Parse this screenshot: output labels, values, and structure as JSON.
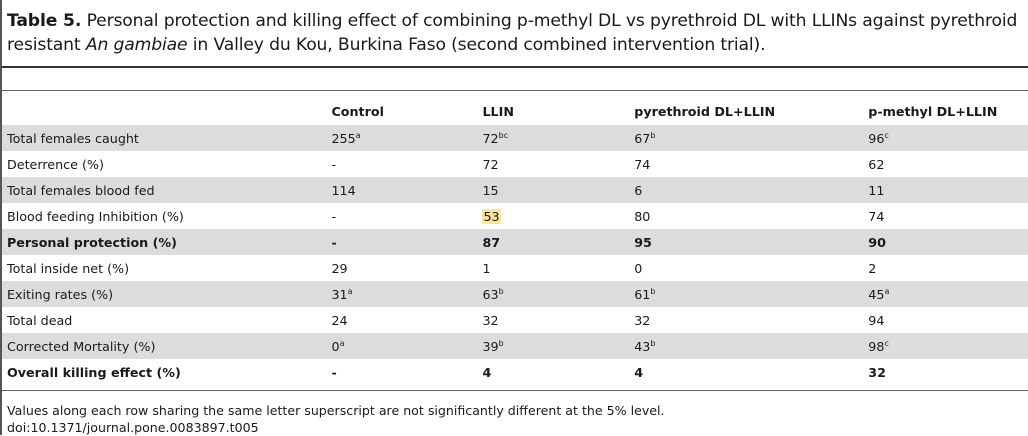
{
  "caption": {
    "label": "Table 5.",
    "text_before_species": "Personal protection and killing effect of combining p-methyl DL vs pyrethroid DL with LLINs against pyrethroid resistant",
    "species": "An gambiae",
    "text_after_species": "in Valley du Kou, Burkina Faso (second combined intervention trial)."
  },
  "table": {
    "headers": [
      "",
      "Control",
      "LLIN",
      "pyrethroid DL+LLIN",
      "p-methyl DL+LLIN"
    ],
    "rows": [
      {
        "label": "Total females caught",
        "shaded": true,
        "bold": false,
        "cells": [
          {
            "v": "255",
            "s": "a"
          },
          {
            "v": "72",
            "s": "bc"
          },
          {
            "v": "67",
            "s": "b"
          },
          {
            "v": "96",
            "s": "c"
          }
        ]
      },
      {
        "label": "Deterrence (%)",
        "shaded": false,
        "bold": false,
        "cells": [
          {
            "v": "-"
          },
          {
            "v": "72"
          },
          {
            "v": "74"
          },
          {
            "v": "62"
          }
        ]
      },
      {
        "label": "Total females blood fed",
        "shaded": true,
        "bold": false,
        "cells": [
          {
            "v": "114"
          },
          {
            "v": "15"
          },
          {
            "v": "6"
          },
          {
            "v": "11"
          }
        ]
      },
      {
        "label": "Blood feeding Inhibition (%)",
        "shaded": false,
        "bold": false,
        "cells": [
          {
            "v": "-"
          },
          {
            "v": "53",
            "highlight": true
          },
          {
            "v": "80"
          },
          {
            "v": "74"
          }
        ]
      },
      {
        "label": "Personal protection (%)",
        "shaded": true,
        "bold": true,
        "cells": [
          {
            "v": "-"
          },
          {
            "v": "87"
          },
          {
            "v": "95"
          },
          {
            "v": "90"
          }
        ]
      },
      {
        "label": "Total inside net (%)",
        "shaded": false,
        "bold": false,
        "cells": [
          {
            "v": "29"
          },
          {
            "v": "1"
          },
          {
            "v": "0"
          },
          {
            "v": "2"
          }
        ]
      },
      {
        "label": "Exiting rates (%)",
        "shaded": true,
        "bold": false,
        "cells": [
          {
            "v": "31",
            "s": "a"
          },
          {
            "v": "63",
            "s": "b"
          },
          {
            "v": "61",
            "s": "b"
          },
          {
            "v": "45",
            "s": "a"
          }
        ]
      },
      {
        "label": "Total dead",
        "shaded": false,
        "bold": false,
        "cells": [
          {
            "v": "24"
          },
          {
            "v": "32"
          },
          {
            "v": "32"
          },
          {
            "v": "94"
          }
        ]
      },
      {
        "label": "Corrected Mortality (%)",
        "shaded": true,
        "bold": false,
        "cells": [
          {
            "v": "0",
            "s": "a"
          },
          {
            "v": "39",
            "s": "b"
          },
          {
            "v": "43",
            "s": "b"
          },
          {
            "v": "98",
            "s": "c"
          }
        ]
      },
      {
        "label": "Overall killing effect (%)",
        "shaded": false,
        "bold": true,
        "cells": [
          {
            "v": "-"
          },
          {
            "v": "4"
          },
          {
            "v": "4"
          },
          {
            "v": "32"
          }
        ]
      }
    ]
  },
  "footnote": "Values along each row sharing the same letter superscript are not significantly different at the 5% level.",
  "doi": "doi:10.1371/journal.pone.0083897.t005",
  "colors": {
    "row_shade": "#dcdcdc",
    "highlight": "#fde49a"
  }
}
